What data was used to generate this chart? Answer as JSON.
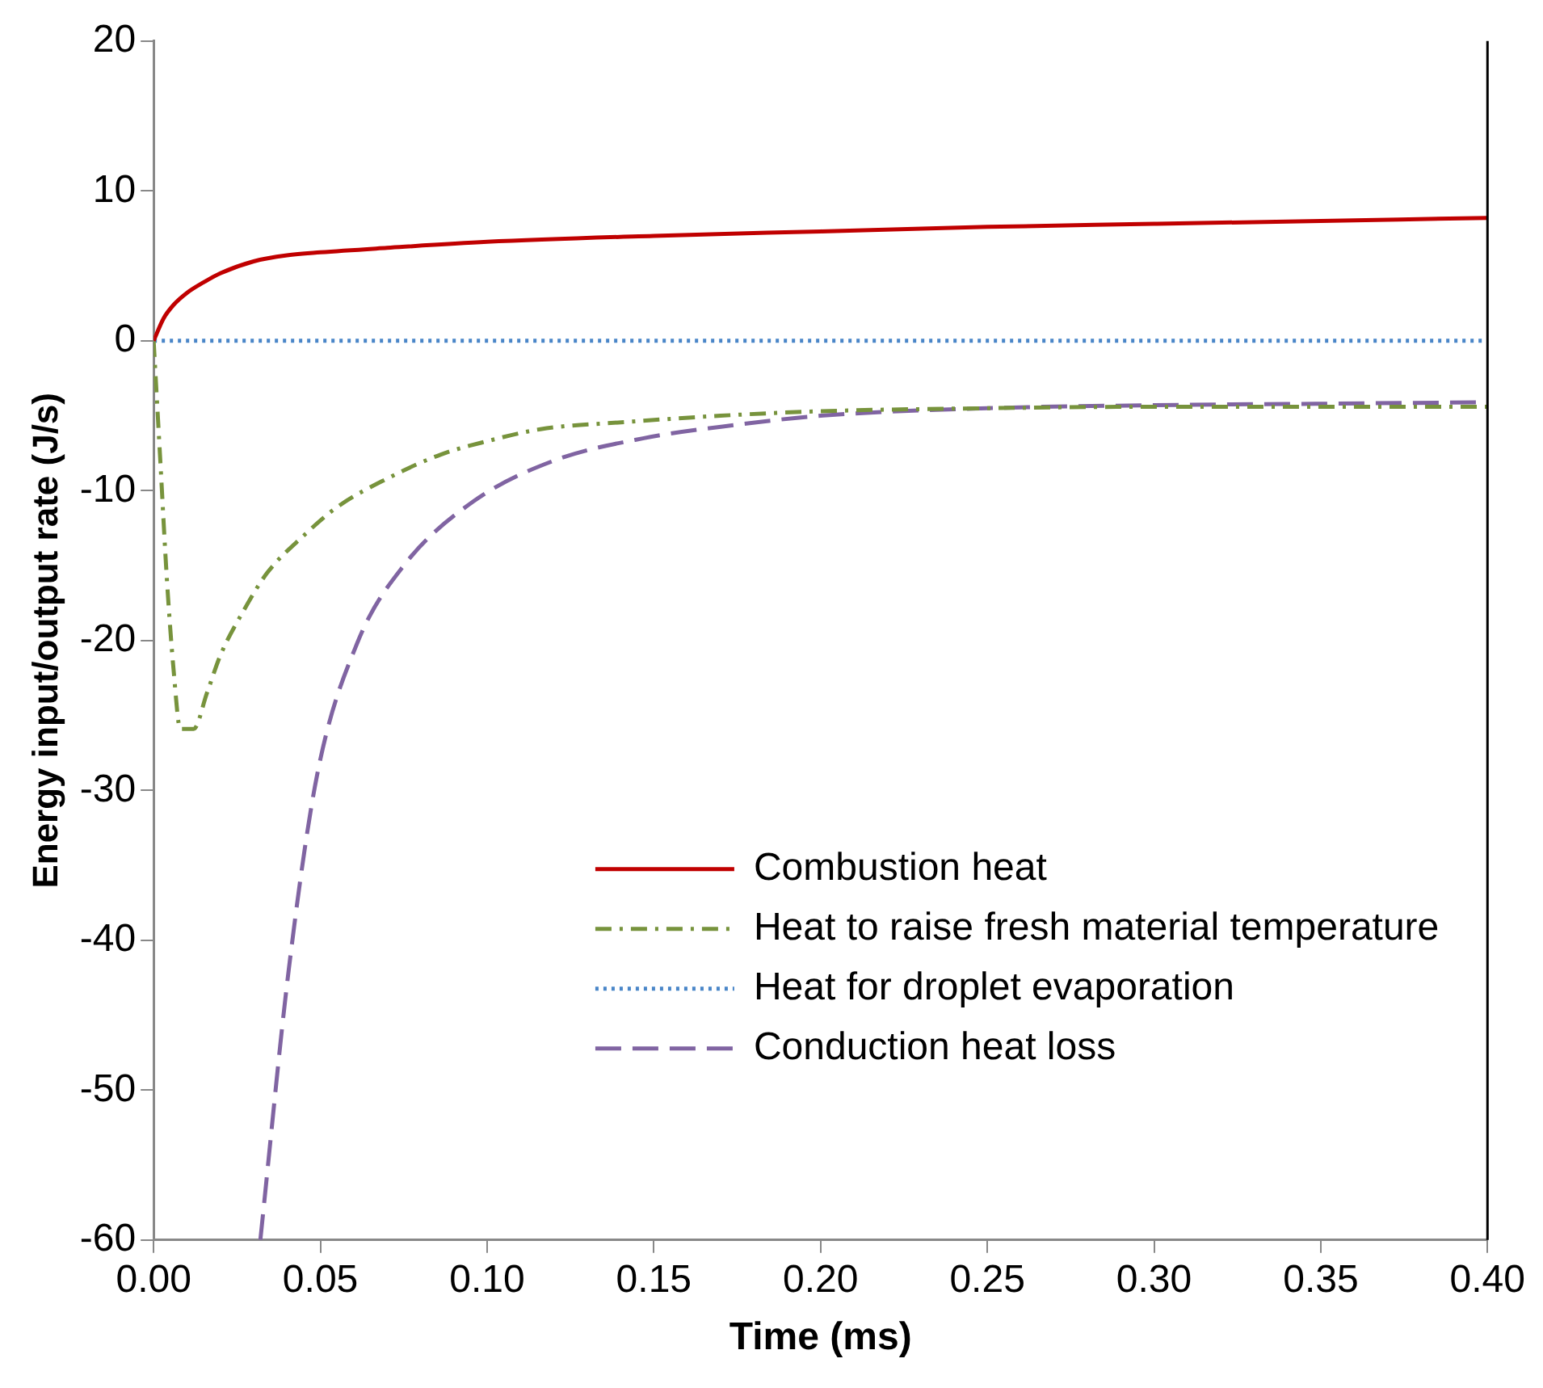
{
  "chart_data": {
    "type": "line",
    "xlabel": "Time (ms)",
    "ylabel": "Energy input/output rate (J/s)",
    "xlim": [
      0,
      0.4
    ],
    "xticks": [
      {
        "value": 0,
        "label": "0.00"
      },
      {
        "value": 0.05,
        "label": "0.05"
      },
      {
        "value": 0.1,
        "label": "0.10"
      },
      {
        "value": 0.15,
        "label": "0.15"
      },
      {
        "value": 0.2,
        "label": "0.20"
      },
      {
        "value": 0.25,
        "label": "0.25"
      },
      {
        "value": 0.3,
        "label": "0.30"
      },
      {
        "value": 0.35,
        "label": "0.35"
      },
      {
        "value": 0.4,
        "label": "0.40"
      }
    ],
    "ylim": [
      -60,
      20
    ],
    "yticks": [
      -60,
      -50,
      -40,
      -30,
      -20,
      -10,
      0,
      10,
      20
    ],
    "grid": false,
    "legend": "bottom right",
    "marker": "none",
    "series": [
      {
        "name": "Combustion heat",
        "color": "#c00000",
        "line_style": "solid",
        "x": [
          0,
          0.003,
          0.006,
          0.01,
          0.015,
          0.02,
          0.03,
          0.04,
          0.05,
          0.07,
          0.1,
          0.15,
          0.2,
          0.25,
          0.3,
          0.35,
          0.4
        ],
        "values": [
          0,
          1.5,
          2.4,
          3.2,
          3.9,
          4.5,
          5.3,
          5.7,
          5.9,
          6.2,
          6.6,
          7.0,
          7.3,
          7.6,
          7.8,
          8.0,
          8.2
        ]
      },
      {
        "name": "Heat to raise fresh material temperature",
        "color": "#77933c",
        "line_style": "dashdot",
        "x": [
          0,
          0.002,
          0.004,
          0.006,
          0.008,
          0.012,
          0.016,
          0.02,
          0.027,
          0.034,
          0.045,
          0.055,
          0.07,
          0.086,
          0.1,
          0.116,
          0.143,
          0.17,
          0.2,
          0.25,
          0.3,
          0.35,
          0.4
        ],
        "values": [
          0,
          -8,
          -16,
          -22,
          -25.9,
          -25.9,
          -23.5,
          -21,
          -18,
          -15.5,
          -13,
          -11.1,
          -9.2,
          -7.6,
          -6.7,
          -5.9,
          -5.4,
          -5.0,
          -4.7,
          -4.5,
          -4.4,
          -4.4,
          -4.4
        ]
      },
      {
        "name": "Heat for droplet evaporation",
        "color": "#4a86c8",
        "line_style": "dotted",
        "x": [
          0,
          0.4
        ],
        "values": [
          0,
          0
        ]
      },
      {
        "name": "Conduction heat loss",
        "color": "#8064a2",
        "line_style": "dashed",
        "x": [
          0.032,
          0.0405,
          0.049,
          0.061,
          0.075,
          0.096,
          0.12,
          0.147,
          0.175,
          0.2,
          0.25,
          0.3,
          0.35,
          0.4
        ],
        "values": [
          -60,
          -42,
          -29,
          -20.2,
          -15,
          -10.7,
          -8,
          -6.5,
          -5.6,
          -5.0,
          -4.5,
          -4.3,
          -4.2,
          -4.1
        ]
      }
    ]
  }
}
